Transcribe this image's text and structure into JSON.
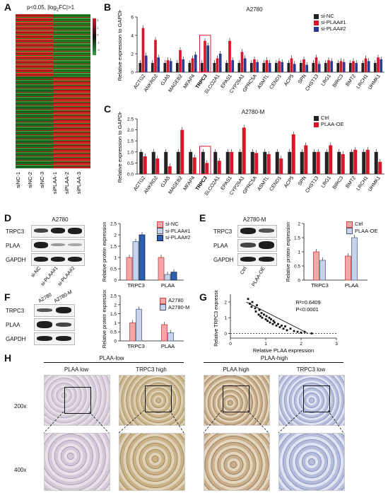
{
  "panels": {
    "A": {
      "label": "A",
      "title": "p<0.05, |log",
      "title_sub": "2",
      "title_end": "FC|>1",
      "samples": [
        "siNC-1",
        "siNC-2",
        "siNC-3",
        "siPLAA-1",
        "siPLAA-2",
        "siPLAA-3"
      ],
      "colorbar": [
        "2",
        "1",
        "0",
        "-1",
        "-2"
      ]
    },
    "B": {
      "label": "B",
      "cell": "A2780",
      "ylabel": "Relative expression to GAPDH",
      "legend": [
        "si-NC",
        "si-PLAA#1",
        "si-PLAA#2"
      ],
      "genes": [
        "ACTG2",
        "ANKRD2",
        "GJA5",
        "MAGEB2",
        "MFAP4",
        "TRPC3",
        "SLCO2A1",
        "EPAS1",
        "CYP26A1",
        "GPRC5A",
        "ASMTL",
        "CEND1",
        "ACP5",
        "SPN",
        "CHST13",
        "LRG1",
        "BIRC3",
        "BMT2",
        "LRCH1",
        "UHMK1"
      ],
      "yticks": [
        "0",
        "2",
        "4",
        "6"
      ]
    },
    "C": {
      "label": "C",
      "cell": "A2780-M",
      "ylabel": "Relative expression to GAPDH",
      "legend": [
        "Ctrl",
        "PLAA-OE"
      ],
      "yticks": [
        "0.0",
        "0.5",
        "1.0",
        "1.5",
        "2.0",
        "2.5"
      ]
    },
    "D": {
      "label": "D",
      "cell": "A2780",
      "rows": [
        "TRPC3",
        "PLAA",
        "GAPDH"
      ],
      "lanes": [
        "si-NC",
        "si-PLAA#1",
        "si-PLAA#2"
      ],
      "ylabel": "Relative protein expression",
      "legend": [
        "si-NC",
        "si-PLAA#1",
        "si-PLAA#2"
      ],
      "groups": [
        "TRPC3",
        "PLAA"
      ],
      "yticks": [
        "0",
        "0.5",
        "1",
        "1.5",
        "2",
        "2.5"
      ]
    },
    "E": {
      "label": "E",
      "cell": "A2780-M",
      "rows": [
        "TRPC3",
        "PLAA",
        "GAPDH"
      ],
      "lanes": [
        "Ctrl",
        "PLAA-OE"
      ],
      "ylabel": "Relative protein expression",
      "legend": [
        "Ctrl",
        "PLAA-OE"
      ],
      "groups": [
        "TRPC3",
        "PLAA"
      ],
      "yticks": [
        "0",
        "0.5",
        "1",
        "1.5",
        "2"
      ]
    },
    "F": {
      "label": "F",
      "lanes": [
        "A2780",
        "A2780-M"
      ],
      "rows": [
        "TRPC3",
        "PLAA",
        "GAPDH"
      ],
      "ylabel": "Relative protein expression",
      "legend": [
        "A2780",
        "A2780-M"
      ],
      "groups": [
        "TRPC3",
        "PLAA"
      ],
      "yticks": [
        "0",
        "0.5",
        "1",
        "1.5",
        "2",
        "2.5"
      ]
    },
    "G": {
      "label": "G",
      "ylabel": "Relative TRPC3 expression",
      "xlabel": "Relative PLAA expression",
      "r2": "R²=0.6409",
      "p": "P<0.0001",
      "xticks": [
        "0",
        "1",
        "2",
        "3"
      ],
      "yticks": [
        "0",
        "1",
        "2"
      ]
    },
    "H": {
      "label": "H",
      "group_low": "PLAA-low",
      "group_high": "PLAA-high",
      "cols": [
        "PLAA low",
        "TRPC3 high",
        "PLAA high",
        "TRPC3 low"
      ],
      "rows": [
        "200x",
        "400x"
      ]
    }
  },
  "colors": {
    "black": "#222222",
    "red": "#d7182a",
    "blue": "#2b3b8f",
    "pink": "#f4a6a6",
    "lightblue": "#c7d3ea"
  },
  "chart_data": [
    {
      "type": "bar",
      "id": "B",
      "categories": [
        "ACTG2",
        "ANKRD2",
        "GJA5",
        "MAGEB2",
        "MFAP4",
        "TRPC3",
        "SLCO2A1",
        "EPAS1",
        "CYP26A1",
        "GPRC5A",
        "ASMTL",
        "CEND1",
        "ACP5",
        "SPN",
        "CHST13",
        "LRG1",
        "BIRC3",
        "BMT2",
        "LRCH1",
        "UHMK1"
      ],
      "series": [
        {
          "name": "si-NC",
          "values": [
            1,
            1,
            1,
            1,
            1,
            1,
            1,
            1,
            1,
            1,
            1,
            1,
            1,
            1,
            1,
            1,
            1,
            1,
            1,
            1
          ]
        },
        {
          "name": "si-PLAA#1",
          "values": [
            4.8,
            3.5,
            1.3,
            2.4,
            1.5,
            3.4,
            1.5,
            3.4,
            2.2,
            1.4,
            1.3,
            1.2,
            1.5,
            1.4,
            1.6,
            1.3,
            1.2,
            1.2,
            1.5,
            1.6
          ]
        },
        {
          "name": "si-PLAA#2",
          "values": [
            1.8,
            1.6,
            1.2,
            1.4,
            1.9,
            2.9,
            2.0,
            1.3,
            1.5,
            1.1,
            1.0,
            1.1,
            0.9,
            0.8,
            0.9,
            1.2,
            1.1,
            1.0,
            1.2,
            1.4
          ]
        }
      ],
      "ylim": [
        0,
        6
      ]
    },
    {
      "type": "bar",
      "id": "C",
      "categories": [
        "ACTG2",
        "ANKRD2",
        "GJA5",
        "MAGEB2",
        "MFAP4",
        "TRPC3",
        "SLCO2A1",
        "EPAS1",
        "CYP26A1",
        "GPRC5A",
        "ASMTL",
        "CEND1",
        "ACP5",
        "SPN",
        "CHST13",
        "LRG1",
        "BIRC3",
        "BMT2",
        "LRCH1",
        "UHMK1"
      ],
      "series": [
        {
          "name": "Ctrl",
          "values": [
            1,
            1,
            1,
            1,
            1,
            1,
            1,
            1,
            1,
            1,
            1,
            1,
            1,
            1,
            1,
            1,
            1,
            1,
            1,
            1
          ]
        },
        {
          "name": "PLAA-OE",
          "values": [
            0.8,
            0.7,
            0.35,
            2.0,
            0.75,
            0.5,
            0.6,
            1.0,
            2.1,
            0.95,
            0.9,
            0.7,
            1.8,
            1.3,
            1.0,
            1.3,
            0.9,
            1.1,
            1.1,
            0.55
          ]
        }
      ],
      "ylim": [
        0,
        2.5
      ]
    },
    {
      "type": "bar",
      "id": "D",
      "categories": [
        "TRPC3",
        "PLAA"
      ],
      "series": [
        {
          "name": "si-NC",
          "values": [
            1.0,
            1.0
          ]
        },
        {
          "name": "si-PLAA#1",
          "values": [
            1.7,
            0.25
          ]
        },
        {
          "name": "si-PLAA#2",
          "values": [
            2.0,
            0.35
          ]
        }
      ],
      "ylim": [
        0,
        2.5
      ]
    },
    {
      "type": "bar",
      "id": "E",
      "categories": [
        "TRPC3",
        "PLAA"
      ],
      "series": [
        {
          "name": "Ctrl",
          "values": [
            1.0,
            0.85
          ]
        },
        {
          "name": "PLAA-OE",
          "values": [
            0.7,
            1.5
          ]
        }
      ],
      "ylim": [
        0,
        2
      ]
    },
    {
      "type": "bar",
      "id": "F",
      "categories": [
        "TRPC3",
        "PLAA"
      ],
      "series": [
        {
          "name": "A2780",
          "values": [
            1.0,
            0.9
          ]
        },
        {
          "name": "A2780-M",
          "values": [
            1.75,
            0.45
          ]
        }
      ],
      "ylim": [
        0,
        2.5
      ]
    },
    {
      "type": "scatter",
      "id": "G",
      "x": [
        0.5,
        0.55,
        0.6,
        0.62,
        0.7,
        0.72,
        0.75,
        0.8,
        0.82,
        0.85,
        0.88,
        0.9,
        0.95,
        1.0,
        1.02,
        1.05,
        1.1,
        1.12,
        1.15,
        1.2,
        1.22,
        1.25,
        1.3,
        1.35,
        1.4,
        1.45,
        1.5,
        1.55,
        1.6,
        1.7,
        1.8,
        1.9,
        2.0,
        2.1,
        2.3
      ],
      "y": [
        2.2,
        1.9,
        1.7,
        2.0,
        1.6,
        1.4,
        1.8,
        1.2,
        1.5,
        1.1,
        1.3,
        1.0,
        1.2,
        0.9,
        1.1,
        0.8,
        1.0,
        0.7,
        0.9,
        0.6,
        0.8,
        0.7,
        0.5,
        0.6,
        0.4,
        0.5,
        0.3,
        0.45,
        0.2,
        0.3,
        0.15,
        0.1,
        0.05,
        0.1,
        0.0
      ],
      "xlim": [
        0,
        3
      ],
      "ylim": [
        -0.3,
        2.5
      ]
    }
  ]
}
